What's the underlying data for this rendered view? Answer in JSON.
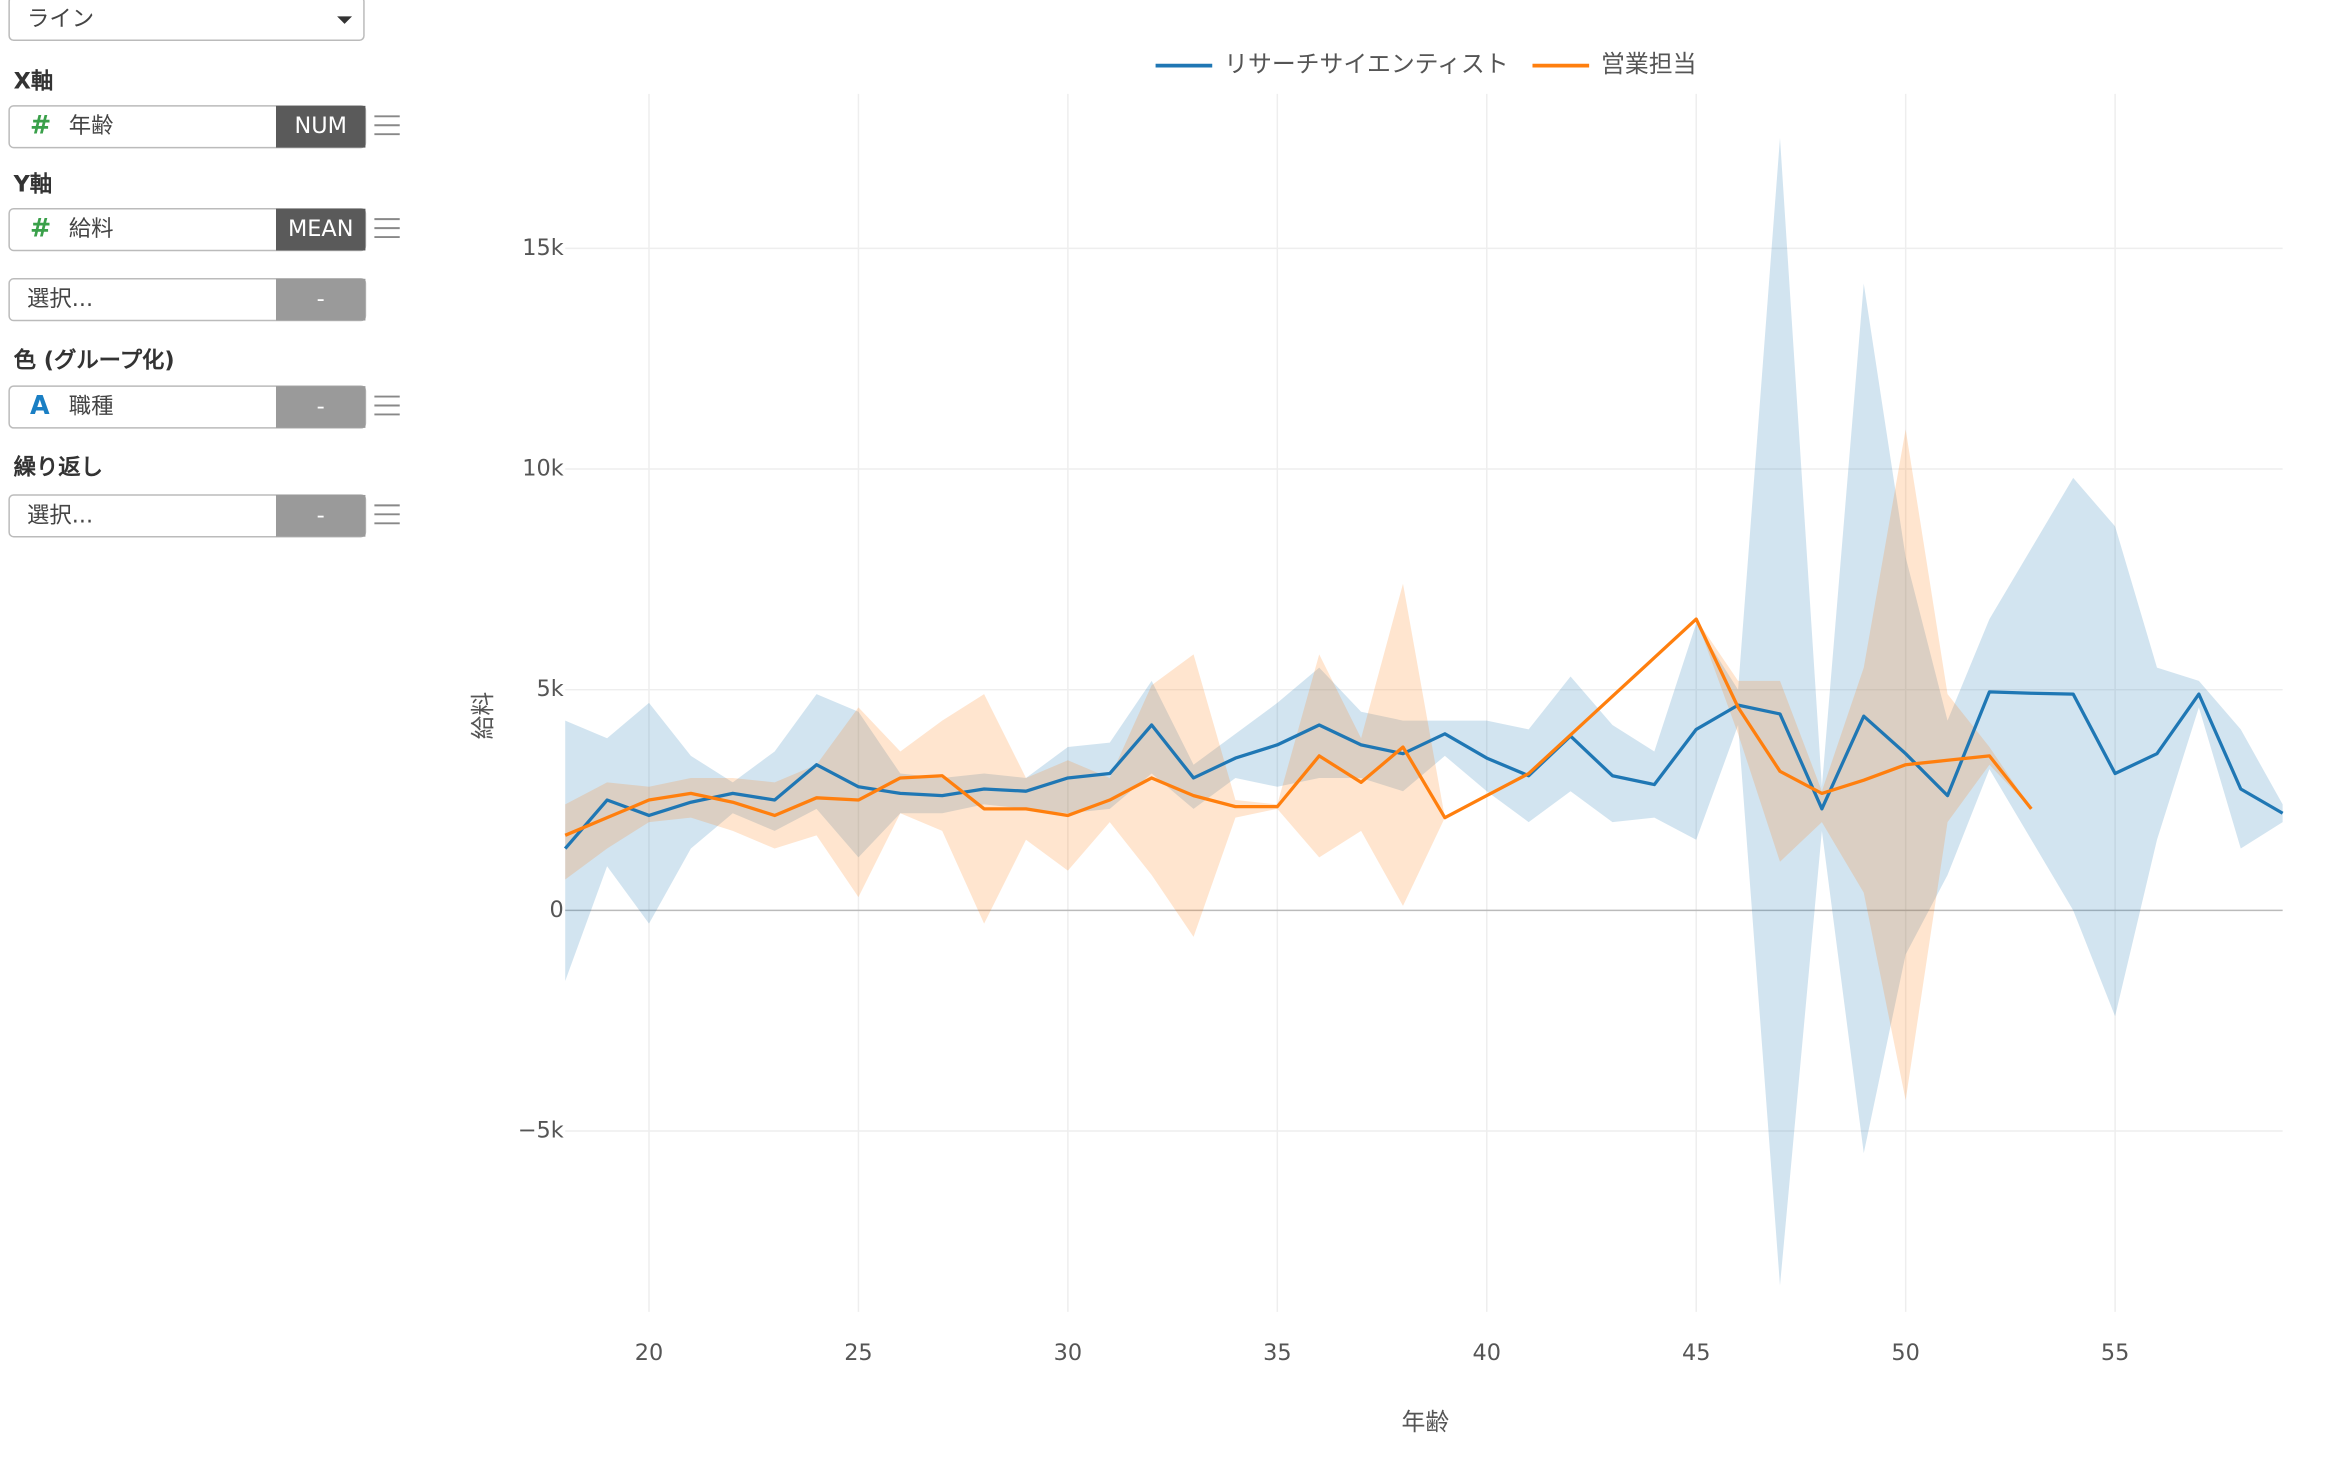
{
  "sidebar": {
    "chart_type": "ライン",
    "x_label": "X軸",
    "x_field": "年齢",
    "x_icon": "#",
    "x_tag": "NUM",
    "y_label": "Y軸",
    "y_field": "給料",
    "y_icon": "#",
    "y_tag": "MEAN",
    "extra_field": "選択...",
    "extra_tag": "-",
    "color_label": "色 (グループ化)",
    "color_icon": "A",
    "color_field": "職種",
    "color_tag": "-",
    "repeat_label": "繰り返し",
    "repeat_field": "選択...",
    "repeat_tag": "-"
  },
  "chart_data": {
    "type": "line",
    "x_label": "年齢",
    "y_label": "給料",
    "x": [
      18,
      19,
      20,
      21,
      22,
      23,
      24,
      25,
      26,
      27,
      28,
      29,
      30,
      31,
      32,
      33,
      34,
      35,
      36,
      37,
      38,
      39,
      40,
      41,
      42,
      43,
      44,
      45,
      46,
      47,
      48,
      49,
      50,
      51,
      52,
      53,
      54,
      55,
      56,
      57,
      58,
      59
    ],
    "xlim": [
      18,
      59
    ],
    "xticks": [
      20,
      25,
      30,
      35,
      40,
      45,
      50,
      55
    ],
    "ylim": [
      -9100,
      18500
    ],
    "yticks": [
      {
        "value": -5000,
        "label": "−5k"
      },
      0,
      {
        "value": 5000,
        "label": "5k"
      },
      {
        "value": 10000,
        "label": "10k"
      },
      {
        "value": 15000,
        "label": "15k"
      }
    ],
    "grid": true,
    "legend": "top",
    "series": [
      {
        "name": "リサーチサイエンティスト",
        "color": "#1f77b4",
        "band_color": "rgba(31,119,180,0.2)",
        "values": [
          1400,
          2500,
          2150,
          2450,
          2650,
          2500,
          3300,
          2800,
          2650,
          2600,
          2750,
          2700,
          3000,
          3100,
          4200,
          3000,
          3450,
          3750,
          4200,
          3750,
          3550,
          4000,
          3450,
          3050,
          3950,
          3050,
          2850,
          4100,
          4650,
          4450,
          2300,
          4400,
          3550,
          2600,
          4950,
          4920,
          4900,
          3100,
          3550,
          4900,
          2750,
          2200
        ],
        "lower": [
          -1600,
          1000,
          -300,
          1400,
          2200,
          1800,
          2300,
          1200,
          2200,
          2200,
          2400,
          2300,
          2200,
          2300,
          3100,
          2300,
          3000,
          2800,
          3000,
          3000,
          2700,
          3500,
          2700,
          2000,
          2700,
          2000,
          2100,
          1600,
          4200,
          -8500,
          1800,
          -5500,
          -1000,
          800,
          3200,
          1600,
          0,
          -2400,
          1600,
          4600,
          1400,
          2000
        ],
        "upper": [
          4300,
          3900,
          4700,
          3500,
          2900,
          3600,
          4900,
          4500,
          3100,
          3000,
          3100,
          3000,
          3700,
          3800,
          5200,
          3300,
          4000,
          4700,
          5500,
          4500,
          4300,
          4300,
          4300,
          4100,
          5300,
          4200,
          3600,
          6500,
          5000,
          17500,
          2800,
          14200,
          8000,
          4300,
          6600,
          8200,
          9800,
          8700,
          5500,
          5200,
          4100,
          2400
        ]
      },
      {
        "name": "営業担当",
        "color": "#ff7f0e",
        "band_color": "rgba(255,127,14,0.2)",
        "values": [
          1700,
          2100,
          2500,
          2650,
          2450,
          2150,
          2550,
          2500,
          3000,
          3050,
          2300,
          2300,
          2150,
          2500,
          3000,
          2600,
          2350,
          2350,
          3500,
          2900,
          3700,
          2100,
          2600,
          3100,
          3975,
          4850,
          5725,
          6600,
          4600,
          3150,
          2650,
          2950,
          3300,
          3400,
          3500,
          2300,
          null,
          null,
          null,
          null,
          null,
          null
        ],
        "lower": [
          700,
          1400,
          2000,
          2100,
          1800,
          1400,
          1700,
          300,
          2200,
          1800,
          -300,
          1600,
          900,
          2000,
          800,
          -600,
          2100,
          2300,
          1200,
          1800,
          100,
          2100,
          2600,
          3100,
          3975,
          4850,
          5725,
          6600,
          4000,
          1100,
          2000,
          400,
          -4300,
          2000,
          3300,
          2300,
          null,
          null,
          null,
          null,
          null,
          null
        ],
        "upper": [
          2400,
          2900,
          2800,
          3000,
          3000,
          2900,
          3300,
          4600,
          3600,
          4300,
          4900,
          3000,
          3400,
          3000,
          5100,
          5800,
          2500,
          2400,
          5800,
          3900,
          7400,
          2100,
          2600,
          3100,
          3975,
          4850,
          5725,
          6600,
          5200,
          5200,
          2700,
          5500,
          10900,
          4900,
          3700,
          2300,
          null,
          null,
          null,
          null,
          null,
          null
        ]
      }
    ]
  }
}
